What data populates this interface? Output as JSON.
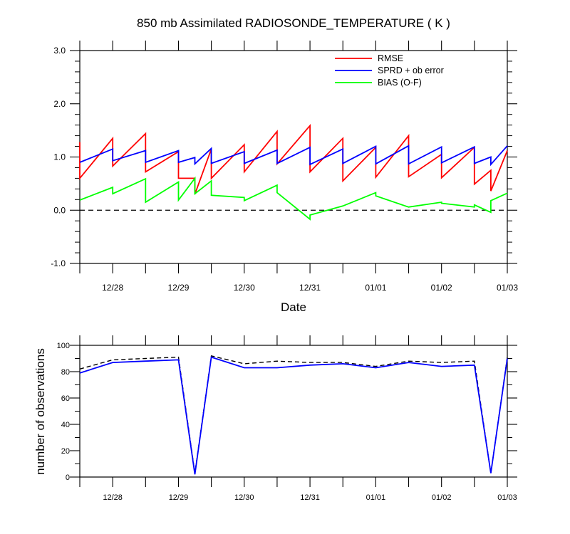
{
  "chart_data": [
    {
      "type": "line",
      "title": "850 mb Assimilated RADIOSONDE_TEMPERATURE ( K )",
      "xlabel": "Date",
      "ylabel": "",
      "x_unit": "days",
      "xlim": [
        -1.5,
        5.0
      ],
      "ylim": [
        -1.0,
        3.0
      ],
      "xticks": [
        {
          "x": -1.0,
          "label": "12/28"
        },
        {
          "x": 0.0,
          "label": "12/29"
        },
        {
          "x": 1.0,
          "label": "12/30"
        },
        {
          "x": 2.0,
          "label": "12/31"
        },
        {
          "x": 3.0,
          "label": "01/01"
        },
        {
          "x": 4.0,
          "label": "01/02"
        },
        {
          "x": 5.0,
          "label": "01/03"
        }
      ],
      "yticks": [
        {
          "y": -1.0,
          "label": "-1.0"
        },
        {
          "y": 0.0,
          "label": "0.0"
        },
        {
          "y": 1.0,
          "label": "1.0"
        },
        {
          "y": 2.0,
          "label": "2.0"
        },
        {
          "y": 3.0,
          "label": "3.0"
        }
      ],
      "legend": {
        "position": "top-right"
      },
      "reference_line": {
        "y": 0.0,
        "style": "dashed"
      },
      "series": [
        {
          "name": "RMSE",
          "color": "#ff0000",
          "points": [
            [
              -1.5,
              1.28
            ],
            [
              -1.5,
              0.6
            ],
            [
              -1.0,
              1.35
            ],
            [
              -1.0,
              0.83
            ],
            [
              -0.5,
              1.44
            ],
            [
              -0.5,
              0.72
            ],
            [
              0.0,
              1.1
            ],
            [
              0.0,
              0.6
            ],
            [
              0.25,
              0.6
            ],
            [
              0.25,
              0.3
            ],
            [
              0.5,
              1.15
            ],
            [
              0.5,
              0.6
            ],
            [
              1.0,
              1.23
            ],
            [
              1.0,
              0.72
            ],
            [
              1.5,
              1.48
            ],
            [
              1.5,
              0.87
            ],
            [
              2.0,
              1.59
            ],
            [
              2.0,
              0.72
            ],
            [
              2.5,
              1.35
            ],
            [
              2.5,
              0.55
            ],
            [
              3.0,
              1.18
            ],
            [
              3.0,
              0.62
            ],
            [
              3.5,
              1.4
            ],
            [
              3.5,
              0.63
            ],
            [
              4.0,
              1.05
            ],
            [
              4.0,
              0.61
            ],
            [
              4.5,
              1.18
            ],
            [
              4.5,
              0.49
            ],
            [
              4.75,
              0.75
            ],
            [
              4.75,
              0.36
            ],
            [
              5.0,
              1.12
            ]
          ]
        },
        {
          "name": "SPRD + ob error",
          "color": "#0000ff",
          "points": [
            [
              -1.5,
              0.9
            ],
            [
              -1.0,
              1.15
            ],
            [
              -1.0,
              0.93
            ],
            [
              -0.5,
              1.12
            ],
            [
              -0.5,
              0.9
            ],
            [
              0.0,
              1.12
            ],
            [
              0.0,
              0.9
            ],
            [
              0.25,
              0.99
            ],
            [
              0.25,
              0.87
            ],
            [
              0.5,
              1.16
            ],
            [
              0.5,
              0.88
            ],
            [
              1.0,
              1.1
            ],
            [
              1.0,
              0.88
            ],
            [
              1.5,
              1.13
            ],
            [
              1.5,
              0.88
            ],
            [
              2.0,
              1.18
            ],
            [
              2.0,
              0.86
            ],
            [
              2.5,
              1.15
            ],
            [
              2.5,
              0.88
            ],
            [
              3.0,
              1.2
            ],
            [
              3.0,
              0.87
            ],
            [
              3.5,
              1.21
            ],
            [
              3.5,
              0.87
            ],
            [
              4.0,
              1.19
            ],
            [
              4.0,
              0.89
            ],
            [
              4.5,
              1.19
            ],
            [
              4.5,
              0.88
            ],
            [
              4.75,
              1.0
            ],
            [
              4.75,
              0.86
            ],
            [
              5.0,
              1.21
            ]
          ]
        },
        {
          "name": "BIAS (O-F)",
          "color": "#00ff00",
          "points": [
            [
              -1.5,
              0.19
            ],
            [
              -1.0,
              0.43
            ],
            [
              -1.0,
              0.31
            ],
            [
              -0.5,
              0.59
            ],
            [
              -0.5,
              0.15
            ],
            [
              0.0,
              0.53
            ],
            [
              0.0,
              0.19
            ],
            [
              0.25,
              0.6
            ],
            [
              0.25,
              0.31
            ],
            [
              0.5,
              0.55
            ],
            [
              0.5,
              0.28
            ],
            [
              1.0,
              0.24
            ],
            [
              1.0,
              0.18
            ],
            [
              1.5,
              0.47
            ],
            [
              1.5,
              0.33
            ],
            [
              2.0,
              -0.17
            ],
            [
              2.0,
              -0.09
            ],
            [
              2.5,
              0.08
            ],
            [
              3.0,
              0.33
            ],
            [
              3.0,
              0.27
            ],
            [
              3.5,
              0.06
            ],
            [
              4.0,
              0.15
            ],
            [
              4.0,
              0.13
            ],
            [
              4.5,
              0.06
            ],
            [
              4.5,
              0.1
            ],
            [
              4.75,
              -0.04
            ],
            [
              4.75,
              0.18
            ],
            [
              5.0,
              0.32
            ]
          ]
        }
      ]
    },
    {
      "type": "line",
      "ylabel": "number of observations",
      "x_unit": "days",
      "xlim": [
        -1.5,
        5.0
      ],
      "ylim": [
        0,
        100
      ],
      "xticks": [
        {
          "x": -1.0,
          "label": "12/28"
        },
        {
          "x": 0.0,
          "label": "12/29"
        },
        {
          "x": 1.0,
          "label": "12/30"
        },
        {
          "x": 2.0,
          "label": "12/31"
        },
        {
          "x": 3.0,
          "label": "01/01"
        },
        {
          "x": 4.0,
          "label": "01/02"
        },
        {
          "x": 5.0,
          "label": "01/03"
        }
      ],
      "yticks": [
        {
          "y": 0,
          "label": "0"
        },
        {
          "y": 20,
          "label": "20"
        },
        {
          "y": 40,
          "label": "40"
        },
        {
          "y": 60,
          "label": "60"
        },
        {
          "y": 80,
          "label": "80"
        },
        {
          "y": 100,
          "label": "100"
        }
      ],
      "series": [
        {
          "color": "#000000",
          "style": "dashed",
          "points": [
            [
              -1.5,
              82
            ],
            [
              -1.0,
              89
            ],
            [
              -0.5,
              90
            ],
            [
              0.0,
              91
            ],
            [
              0.25,
              3
            ],
            [
              0.5,
              92
            ],
            [
              1.0,
              86
            ],
            [
              1.5,
              88
            ],
            [
              2.0,
              87
            ],
            [
              2.5,
              87
            ],
            [
              3.0,
              84
            ],
            [
              3.5,
              88
            ],
            [
              4.0,
              87
            ],
            [
              4.5,
              88
            ],
            [
              4.75,
              3
            ],
            [
              5.0,
              91
            ]
          ]
        },
        {
          "color": "#0000ff",
          "style": "solid",
          "points": [
            [
              -1.5,
              79
            ],
            [
              -1.0,
              87
            ],
            [
              -0.5,
              88
            ],
            [
              0.0,
              89
            ],
            [
              0.25,
              2
            ],
            [
              0.5,
              91
            ],
            [
              1.0,
              83
            ],
            [
              1.5,
              83
            ],
            [
              2.0,
              85
            ],
            [
              2.5,
              86
            ],
            [
              3.0,
              83
            ],
            [
              3.5,
              87
            ],
            [
              4.0,
              84
            ],
            [
              4.5,
              85
            ],
            [
              4.75,
              3
            ],
            [
              5.0,
              90
            ]
          ]
        }
      ]
    }
  ]
}
